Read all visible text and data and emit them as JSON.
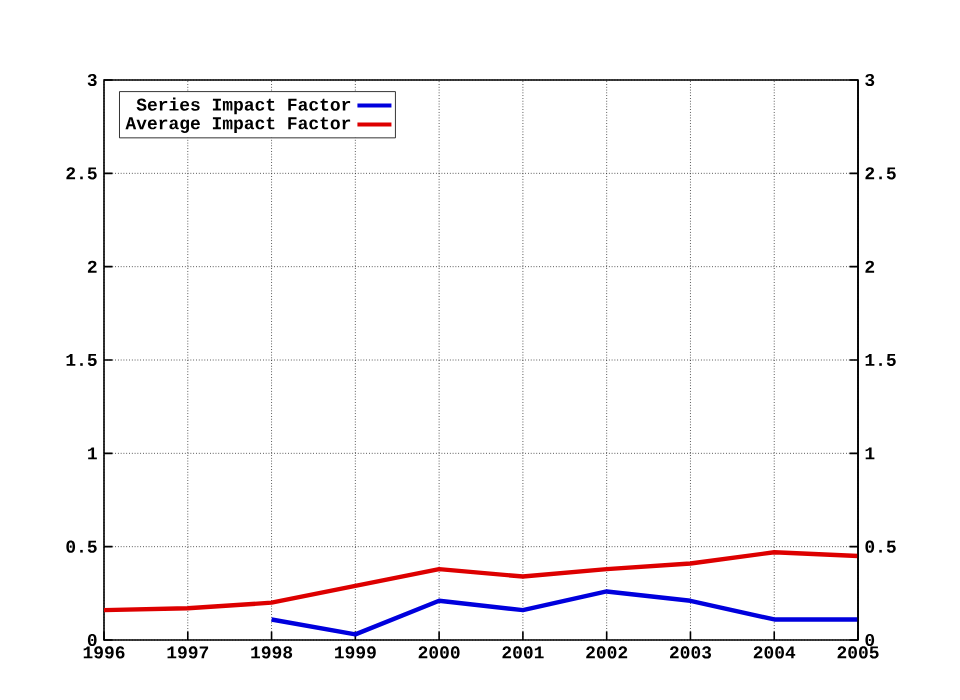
{
  "chart_data": {
    "type": "line",
    "x": [
      1996,
      1997,
      1998,
      1999,
      2000,
      2001,
      2002,
      2003,
      2004,
      2005
    ],
    "series": [
      {
        "name": "Series Impact Factor",
        "color": "#0000dd",
        "values": [
          null,
          null,
          0.11,
          0.03,
          0.21,
          0.16,
          0.26,
          0.21,
          0.11,
          0.11
        ]
      },
      {
        "name": "Average Impact Factor",
        "color": "#dd0000",
        "values": [
          0.16,
          0.17,
          0.2,
          0.29,
          0.38,
          0.34,
          0.38,
          0.41,
          0.47,
          0.45
        ]
      }
    ],
    "xlim": [
      1996,
      2005
    ],
    "xticks": [
      1996,
      1997,
      1998,
      1999,
      2000,
      2001,
      2002,
      2003,
      2004,
      2005
    ],
    "ylim": [
      0,
      3
    ],
    "yticks": [
      0,
      0.5,
      1,
      1.5,
      2,
      2.5,
      3
    ],
    "y2lim": [
      0,
      3
    ],
    "y2ticks": [
      0,
      0.5,
      1,
      1.5,
      2,
      2.5,
      3
    ],
    "grid": true,
    "legend": "top left",
    "marker": "none",
    "line_style": "solid"
  }
}
